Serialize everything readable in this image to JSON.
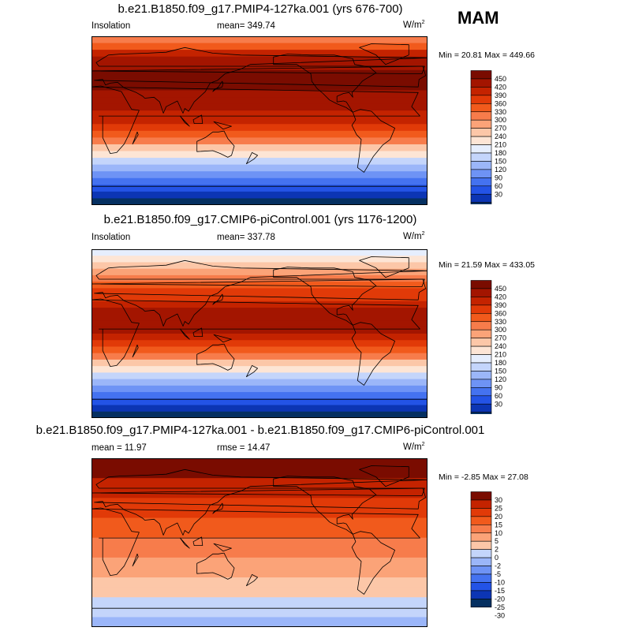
{
  "season": "MAM",
  "colors": {
    "lev16": [
      "#053061",
      "#0c35b4",
      "#2353e6",
      "#4472f0",
      "#6e93f5",
      "#9bb6f9",
      "#c4d5fb",
      "#e6eefd",
      "#fde5d5",
      "#fcc7a8",
      "#fba378",
      "#f77c4b",
      "#f15a1c",
      "#e13a08",
      "#c42300",
      "#a31500",
      "#7a0c00"
    ],
    "lev12": [
      "#053061",
      "#0c35b4",
      "#2353e6",
      "#4472f0",
      "#6e93f5",
      "#9bb6f9",
      "#c4d5fb",
      "#fcc7a8",
      "#fba378",
      "#f77c4b",
      "#f15a1c",
      "#e13a08",
      "#c42300",
      "#7a0c00"
    ]
  },
  "panels": [
    {
      "title": "b.e21.B1850.f09_g17.PMIP4-127ka.001 (yrs 676-700)",
      "left_label": "Insolation",
      "center_label": "mean= 349.74",
      "units": "W/m",
      "units_sup": "2",
      "minmax": "Min =  20.81 Max = 449.66",
      "colorbar_labels": [
        "450",
        "420",
        "390",
        "360",
        "330",
        "300",
        "270",
        "240",
        "210",
        "180",
        "150",
        "120",
        "90",
        "60",
        "30"
      ],
      "palette": "lev16",
      "bands": [
        11,
        12,
        14,
        15,
        15,
        16,
        16,
        16,
        15,
        15,
        15,
        14,
        14,
        13,
        12,
        11,
        9,
        8,
        6,
        5,
        4,
        3,
        2,
        1,
        0
      ]
    },
    {
      "title": "b.e21.B1850.f09_g17.CMIP6-piControl.001 (yrs 1176-1200)",
      "left_label": "Insolation",
      "center_label": "mean= 337.78",
      "units": "W/m",
      "units_sup": "2",
      "minmax": "Min =  21.59 Max = 433.05",
      "colorbar_labels": [
        "450",
        "420",
        "390",
        "360",
        "330",
        "300",
        "270",
        "240",
        "210",
        "180",
        "150",
        "120",
        "90",
        "60",
        "30"
      ],
      "palette": "lev16",
      "bands": [
        7,
        8,
        9,
        10,
        11,
        12,
        13,
        13,
        14,
        15,
        15,
        15,
        15,
        14,
        13,
        12,
        11,
        9,
        8,
        6,
        5,
        4,
        3,
        2,
        1,
        0
      ]
    },
    {
      "title": "b.e21.B1850.f09_g17.PMIP4-127ka.001 - b.e21.B1850.f09_g17.CMIP6-piControl.001",
      "left_label": "mean =  11.97",
      "center_label": "rmse =  14.47",
      "units": "W/m",
      "units_sup": "2",
      "minmax": "Min =  -2.85 Max =  27.08",
      "colorbar_labels": [
        "30",
        "25",
        "20",
        "15",
        "10",
        "5",
        "2",
        "0",
        "-2",
        "-5",
        "-10",
        "-15",
        "-20",
        "-25",
        "-30"
      ],
      "palette": "lev12",
      "bands": [
        13,
        13,
        12,
        12,
        11,
        11,
        10,
        10,
        9,
        9,
        8,
        8,
        7,
        7,
        6,
        6,
        5
      ]
    }
  ]
}
